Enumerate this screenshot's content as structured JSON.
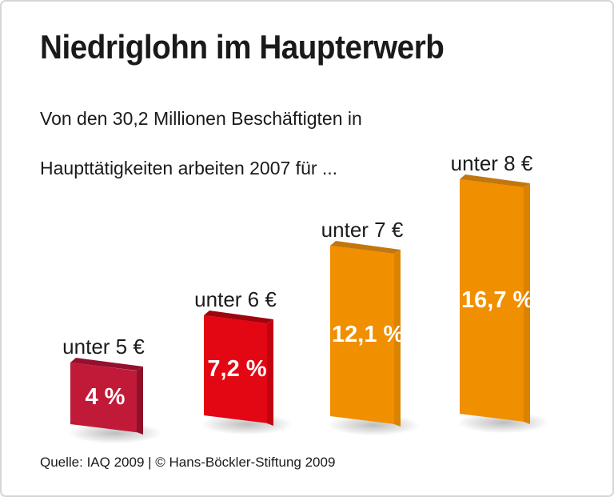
{
  "page": {
    "background_color": "#ffffff",
    "border_color": "#d6d6d6",
    "text_color": "#1a1a1a"
  },
  "header": {
    "title": "Niedriglohn im Haupterwerb",
    "subtitle_line1": "Von den 30,2 Millionen Beschäftigten in",
    "subtitle_line2": "Haupttätigkeiten arbeiten 2007 für ..."
  },
  "footer": {
    "source": "Quelle: IAQ 2009 | © Hans-Böckler-Stiftung 2009"
  },
  "chart_data": {
    "type": "bar",
    "title": "Niedriglohn im Haupterwerb",
    "subtitle": "Von den 30,2 Millionen Beschäftigten in Haupttätigkeiten arbeiten 2007 für ...",
    "year": "2007",
    "population_reference": "30,2 Millionen Beschäftigte in Haupttätigkeiten",
    "categories": [
      "unter 5 €",
      "unter 6 €",
      "unter 7 €",
      "unter 8 €"
    ],
    "values": [
      4,
      7.2,
      12.1,
      16.7
    ],
    "value_labels": [
      "4 %",
      "7,2 %",
      "12,1 %",
      "16,7 %"
    ],
    "unit": "%",
    "source": "Quelle: IAQ 2009 | © Hans-Böckler-Stiftung 2009",
    "layout": {
      "grid": false,
      "legend": false,
      "axes_hidden": true,
      "style": "3d-slab bars on white, no axes, labels above bars, values centered in bars"
    },
    "bars": [
      {
        "label": "unter 5 €",
        "value": 4,
        "value_label": "4 %",
        "color_front": "#c11a38",
        "color_side": "#8f1129",
        "color_top": "#94102e"
      },
      {
        "label": "unter 6 €",
        "value": 7.2,
        "value_label": "7,2 %",
        "color_front": "#e30613",
        "color_side": "#c10510",
        "color_top": "#9c040e"
      },
      {
        "label": "unter 7 €",
        "value": 12.1,
        "value_label": "12,1 %",
        "color_front": "#f08f00",
        "color_side": "#db8300",
        "color_top": "#c2770e"
      },
      {
        "label": "unter 8 €",
        "value": 16.7,
        "value_label": "16,7 %",
        "color_front": "#f08f00",
        "color_side": "#db8300",
        "color_top": "#c2770e"
      }
    ]
  }
}
